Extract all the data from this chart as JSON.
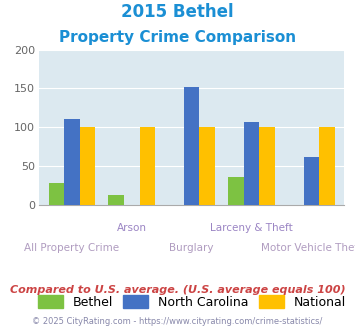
{
  "title_line1": "2015 Bethel",
  "title_line2": "Property Crime Comparison",
  "categories": [
    "All Property Crime",
    "Arson",
    "Burglary",
    "Larceny & Theft",
    "Motor Vehicle Theft"
  ],
  "bethel": [
    28,
    13,
    0,
    36,
    0
  ],
  "north_carolina": [
    110,
    0,
    152,
    106,
    62
  ],
  "national": [
    100,
    100,
    100,
    100,
    100
  ],
  "bethel_color": "#7DC242",
  "nc_color": "#4472C4",
  "national_color": "#FFC000",
  "bg_color": "#DCE9F0",
  "title_color": "#1B8FD4",
  "xlabel_color_upper": "#9B85C4",
  "xlabel_color_lower": "#B09CC0",
  "footnote_color": "#CC4444",
  "copyright_color": "#8888AA",
  "ylim": [
    0,
    200
  ],
  "yticks": [
    0,
    50,
    100,
    150,
    200
  ],
  "footnote": "Compared to U.S. average. (U.S. average equals 100)",
  "copyright": "© 2025 CityRating.com - https://www.cityrating.com/crime-statistics/"
}
